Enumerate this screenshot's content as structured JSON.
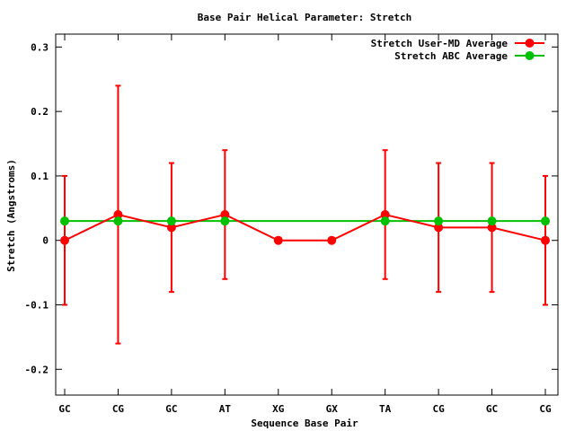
{
  "chart_data": {
    "type": "line",
    "title": "Base Pair Helical Parameter: Stretch",
    "xlabel": "Sequence Base Pair",
    "ylabel": "Stretch (Angstroms)",
    "categories": [
      "GC",
      "CG",
      "GC",
      "AT",
      "XG",
      "GX",
      "TA",
      "CG",
      "GC",
      "CG"
    ],
    "ylim": [
      -0.24,
      0.32
    ],
    "yticks": [
      -0.2,
      -0.1,
      0,
      0.1,
      0.2,
      0.3
    ],
    "ytick_labels": [
      "-0.2",
      "-0.1",
      "0",
      "0.1",
      "0.2",
      "0.3"
    ],
    "grid": false,
    "legend_position": "top-right",
    "series": [
      {
        "name": "Stretch User-MD Average",
        "color": "#ff0000",
        "values": [
          0,
          0.04,
          0.02,
          0.04,
          0,
          0,
          0.04,
          0.02,
          0.02,
          0
        ],
        "error_low": [
          -0.1,
          -0.16,
          -0.08,
          -0.06,
          0,
          0,
          -0.06,
          -0.08,
          -0.08,
          -0.1
        ],
        "error_high": [
          0.1,
          0.24,
          0.12,
          0.14,
          0,
          0,
          0.14,
          0.12,
          0.12,
          0.1
        ]
      },
      {
        "name": "Stretch ABC Average",
        "color": "#00c000",
        "values": [
          0.03,
          0.03,
          0.03,
          0.03,
          null,
          null,
          0.03,
          0.03,
          0.03,
          0.03
        ]
      }
    ]
  }
}
